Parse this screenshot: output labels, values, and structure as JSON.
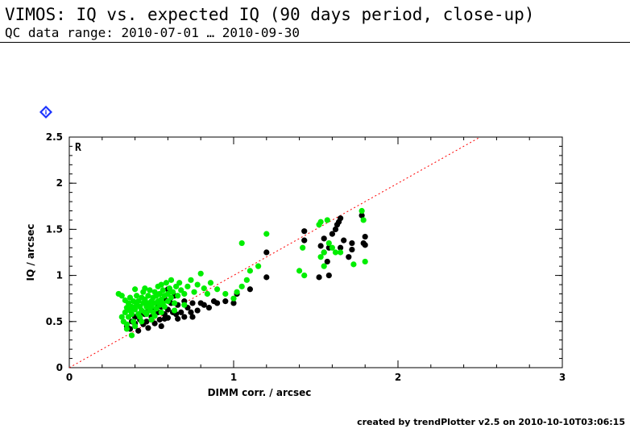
{
  "header": {
    "title": "VIMOS: IQ vs. expected IQ (90 days period, close-up)",
    "subtitle": "QC data range: 2010-07-01 … 2010-09-30"
  },
  "badge": {
    "icon": "info-diamond-icon",
    "label": "i",
    "color": "#1a33ff"
  },
  "footer": {
    "text": "created by trendPlotter v2.5 on 2010-10-10T03:06:15"
  },
  "chart_data": {
    "type": "scatter",
    "panel_label": "R",
    "xlabel": "DIMM corr. / arcsec",
    "ylabel": "IQ / arcsec",
    "xlim": [
      0,
      3
    ],
    "ylim": [
      0,
      2.5
    ],
    "x_ticks": [
      "0",
      "1",
      "2",
      "3"
    ],
    "y_ticks": [
      "0",
      "0.5",
      "1",
      "1.5",
      "2",
      "2.5"
    ],
    "reference_line": {
      "slope": 1,
      "color": "#ff0000",
      "style": "dotted"
    },
    "series": [
      {
        "color": "#000000",
        "points": [
          [
            0.35,
            0.45
          ],
          [
            0.37,
            0.42
          ],
          [
            0.38,
            0.5
          ],
          [
            0.4,
            0.48
          ],
          [
            0.4,
            0.55
          ],
          [
            0.42,
            0.4
          ],
          [
            0.43,
            0.52
          ],
          [
            0.44,
            0.6
          ],
          [
            0.45,
            0.47
          ],
          [
            0.46,
            0.58
          ],
          [
            0.47,
            0.5
          ],
          [
            0.48,
            0.65
          ],
          [
            0.5,
            0.55
          ],
          [
            0.5,
            0.62
          ],
          [
            0.52,
            0.48
          ],
          [
            0.53,
            0.7
          ],
          [
            0.54,
            0.6
          ],
          [
            0.55,
            0.52
          ],
          [
            0.56,
            0.66
          ],
          [
            0.58,
            0.58
          ],
          [
            0.58,
            0.75
          ],
          [
            0.6,
            0.63
          ],
          [
            0.6,
            0.54
          ],
          [
            0.62,
            0.7
          ],
          [
            0.63,
            0.6
          ],
          [
            0.64,
            0.78
          ],
          [
            0.65,
            0.58
          ],
          [
            0.66,
            0.68
          ],
          [
            0.68,
            0.6
          ],
          [
            0.7,
            0.72
          ],
          [
            0.72,
            0.65
          ],
          [
            0.74,
            0.6
          ],
          [
            0.75,
            0.7
          ],
          [
            0.78,
            0.62
          ],
          [
            0.8,
            0.7
          ],
          [
            0.82,
            0.68
          ],
          [
            0.85,
            0.65
          ],
          [
            0.88,
            0.72
          ],
          [
            0.48,
            0.43
          ],
          [
            0.56,
            0.45
          ],
          [
            0.66,
            0.53
          ],
          [
            0.55,
            0.8
          ],
          [
            0.6,
            0.85
          ],
          [
            0.9,
            0.7
          ],
          [
            0.95,
            0.72
          ],
          [
            1.0,
            0.7
          ],
          [
            1.02,
            0.8
          ],
          [
            1.1,
            0.85
          ],
          [
            1.2,
            0.98
          ],
          [
            1.2,
            1.25
          ],
          [
            1.43,
            1.38
          ],
          [
            1.43,
            1.48
          ],
          [
            1.52,
            0.98
          ],
          [
            1.53,
            1.32
          ],
          [
            1.55,
            1.4
          ],
          [
            1.55,
            1.25
          ],
          [
            1.57,
            1.15
          ],
          [
            1.58,
            1.0
          ],
          [
            1.58,
            1.3
          ],
          [
            1.6,
            1.45
          ],
          [
            1.62,
            1.5
          ],
          [
            1.63,
            1.55
          ],
          [
            1.64,
            1.58
          ],
          [
            1.65,
            1.62
          ],
          [
            1.65,
            1.3
          ],
          [
            1.67,
            1.38
          ],
          [
            1.7,
            1.2
          ],
          [
            1.72,
            1.35
          ],
          [
            1.72,
            1.28
          ],
          [
            1.78,
            1.65
          ],
          [
            1.79,
            1.35
          ],
          [
            1.8,
            1.42
          ],
          [
            1.8,
            1.33
          ],
          [
            0.58,
            0.53
          ],
          [
            0.7,
            0.55
          ],
          [
            0.75,
            0.55
          ]
        ]
      },
      {
        "color": "#00ee00",
        "points": [
          [
            0.32,
            0.55
          ],
          [
            0.32,
            0.78
          ],
          [
            0.33,
            0.5
          ],
          [
            0.34,
            0.6
          ],
          [
            0.35,
            0.65
          ],
          [
            0.35,
            0.47
          ],
          [
            0.36,
            0.55
          ],
          [
            0.36,
            0.7
          ],
          [
            0.37,
            0.62
          ],
          [
            0.37,
            0.76
          ],
          [
            0.38,
            0.58
          ],
          [
            0.38,
            0.66
          ],
          [
            0.39,
            0.72
          ],
          [
            0.39,
            0.5
          ],
          [
            0.4,
            0.63
          ],
          [
            0.4,
            0.45
          ],
          [
            0.41,
            0.68
          ],
          [
            0.41,
            0.78
          ],
          [
            0.42,
            0.58
          ],
          [
            0.42,
            0.72
          ],
          [
            0.43,
            0.66
          ],
          [
            0.43,
            0.55
          ],
          [
            0.44,
            0.76
          ],
          [
            0.44,
            0.62
          ],
          [
            0.45,
            0.7
          ],
          [
            0.45,
            0.82
          ],
          [
            0.46,
            0.6
          ],
          [
            0.46,
            0.74
          ],
          [
            0.47,
            0.66
          ],
          [
            0.47,
            0.58
          ],
          [
            0.48,
            0.78
          ],
          [
            0.48,
            0.7
          ],
          [
            0.49,
            0.62
          ],
          [
            0.49,
            0.84
          ],
          [
            0.5,
            0.72
          ],
          [
            0.5,
            0.66
          ],
          [
            0.51,
            0.76
          ],
          [
            0.51,
            0.6
          ],
          [
            0.52,
            0.82
          ],
          [
            0.52,
            0.7
          ],
          [
            0.53,
            0.78
          ],
          [
            0.53,
            0.64
          ],
          [
            0.54,
            0.72
          ],
          [
            0.54,
            0.88
          ],
          [
            0.55,
            0.68
          ],
          [
            0.55,
            0.8
          ],
          [
            0.56,
            0.74
          ],
          [
            0.56,
            0.9
          ],
          [
            0.57,
            0.7
          ],
          [
            0.57,
            0.84
          ],
          [
            0.58,
            0.78
          ],
          [
            0.58,
            0.66
          ],
          [
            0.59,
            0.92
          ],
          [
            0.6,
            0.8
          ],
          [
            0.6,
            0.72
          ],
          [
            0.61,
            0.86
          ],
          [
            0.62,
            0.76
          ],
          [
            0.62,
            0.95
          ],
          [
            0.63,
            0.82
          ],
          [
            0.64,
            0.7
          ],
          [
            0.65,
            0.88
          ],
          [
            0.66,
            0.78
          ],
          [
            0.67,
            0.92
          ],
          [
            0.68,
            0.84
          ],
          [
            0.7,
            0.8
          ],
          [
            0.72,
            0.88
          ],
          [
            0.74,
            0.95
          ],
          [
            0.76,
            0.82
          ],
          [
            0.78,
            0.9
          ],
          [
            0.8,
            1.02
          ],
          [
            0.82,
            0.86
          ],
          [
            0.84,
            0.8
          ],
          [
            0.86,
            0.92
          ],
          [
            0.9,
            0.85
          ],
          [
            0.95,
            0.8
          ],
          [
            1.0,
            0.75
          ],
          [
            1.02,
            0.82
          ],
          [
            1.05,
            0.88
          ],
          [
            1.08,
            0.95
          ],
          [
            1.1,
            1.05
          ],
          [
            1.15,
            1.1
          ],
          [
            1.05,
            1.35
          ],
          [
            1.2,
            1.45
          ],
          [
            1.4,
            1.05
          ],
          [
            1.42,
            1.3
          ],
          [
            1.43,
            1.0
          ],
          [
            1.52,
            1.55
          ],
          [
            1.53,
            1.58
          ],
          [
            1.53,
            1.2
          ],
          [
            1.55,
            1.1
          ],
          [
            1.55,
            1.25
          ],
          [
            1.57,
            1.6
          ],
          [
            1.58,
            1.35
          ],
          [
            1.6,
            1.3
          ],
          [
            1.62,
            1.25
          ],
          [
            1.73,
            1.12
          ],
          [
            1.78,
            1.7
          ],
          [
            1.79,
            1.6
          ],
          [
            1.8,
            1.15
          ],
          [
            1.65,
            1.25
          ],
          [
            0.35,
            0.42
          ],
          [
            0.38,
            0.35
          ],
          [
            0.44,
            0.5
          ],
          [
            0.5,
            0.52
          ],
          [
            0.52,
            0.56
          ],
          [
            0.46,
            0.86
          ],
          [
            0.4,
            0.85
          ],
          [
            0.34,
            0.73
          ],
          [
            0.3,
            0.8
          ],
          [
            0.56,
            0.6
          ],
          [
            0.64,
            0.62
          ],
          [
            0.7,
            0.68
          ]
        ]
      }
    ]
  }
}
